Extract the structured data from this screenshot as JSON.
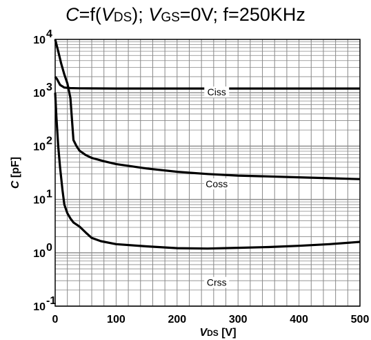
{
  "title": {
    "c": "C",
    "eq": "=f(",
    "v1": "V",
    "v1_sub": "DS",
    "mid": "); ",
    "v2": "V",
    "v2_sub": "GS",
    "tail": "=0V; f=250KHz"
  },
  "colors": {
    "line": "#000000",
    "grid": "#888888",
    "background": "#ffffff"
  },
  "chart_data": {
    "type": "line",
    "title": "C=f(VDS); VGS=0V; f=250KHz",
    "xlabel": "VDS [V]",
    "xlabel_main": "V",
    "xlabel_sub": "DS",
    "xlabel_unit": " [V]",
    "ylabel": "C [pF]",
    "ylabel_main": "C",
    "ylabel_unit": " [pF]",
    "xlim": [
      0,
      500
    ],
    "ylim": [
      0.1,
      10000
    ],
    "y_scale": "log",
    "grid": true,
    "x_ticks": [
      0,
      100,
      200,
      300,
      400,
      500
    ],
    "x_tick_labels": [
      "0",
      "100",
      "200",
      "300",
      "400",
      "500"
    ],
    "y_ticks": [
      {
        "value": 0.1,
        "base": "10",
        "exp": "-1"
      },
      {
        "value": 1,
        "base": "10",
        "exp": "0"
      },
      {
        "value": 10,
        "base": "10",
        "exp": "1"
      },
      {
        "value": 100,
        "base": "10",
        "exp": "2"
      },
      {
        "value": 1000,
        "base": "10",
        "exp": "3"
      },
      {
        "value": 10000,
        "base": "10",
        "exp": "4"
      }
    ],
    "series": [
      {
        "name": "Ciss",
        "label_at": {
          "x": 265,
          "y": 1000
        },
        "points": [
          [
            0,
            2000
          ],
          [
            3,
            1800
          ],
          [
            8,
            1400
          ],
          [
            15,
            1250
          ],
          [
            25,
            1220
          ],
          [
            40,
            1210
          ],
          [
            100,
            1200
          ],
          [
            200,
            1200
          ],
          [
            300,
            1200
          ],
          [
            400,
            1200
          ],
          [
            500,
            1200
          ]
        ]
      },
      {
        "name": "Coss",
        "label_at": {
          "x": 265,
          "y": 19
        },
        "points": [
          [
            0,
            10000
          ],
          [
            5,
            6000
          ],
          [
            10,
            3500
          ],
          [
            15,
            2200
          ],
          [
            20,
            1500
          ],
          [
            25,
            800
          ],
          [
            30,
            130
          ],
          [
            35,
            100
          ],
          [
            40,
            82
          ],
          [
            50,
            68
          ],
          [
            60,
            60
          ],
          [
            80,
            52
          ],
          [
            100,
            46
          ],
          [
            150,
            38
          ],
          [
            200,
            33
          ],
          [
            250,
            30
          ],
          [
            300,
            28
          ],
          [
            350,
            27
          ],
          [
            400,
            26
          ],
          [
            450,
            25
          ],
          [
            500,
            24
          ]
        ]
      },
      {
        "name": "Crss",
        "label_at": {
          "x": 265,
          "y": 0.27
        },
        "points": [
          [
            0,
            1000
          ],
          [
            2,
            350
          ],
          [
            5,
            100
          ],
          [
            8,
            40
          ],
          [
            12,
            15
          ],
          [
            15,
            8
          ],
          [
            20,
            5.5
          ],
          [
            25,
            4.4
          ],
          [
            30,
            3.7
          ],
          [
            40,
            3.1
          ],
          [
            50,
            2.4
          ],
          [
            60,
            1.9
          ],
          [
            75,
            1.65
          ],
          [
            100,
            1.45
          ],
          [
            150,
            1.32
          ],
          [
            200,
            1.22
          ],
          [
            250,
            1.2
          ],
          [
            300,
            1.24
          ],
          [
            350,
            1.28
          ],
          [
            400,
            1.35
          ],
          [
            450,
            1.45
          ],
          [
            500,
            1.6
          ]
        ]
      }
    ]
  }
}
